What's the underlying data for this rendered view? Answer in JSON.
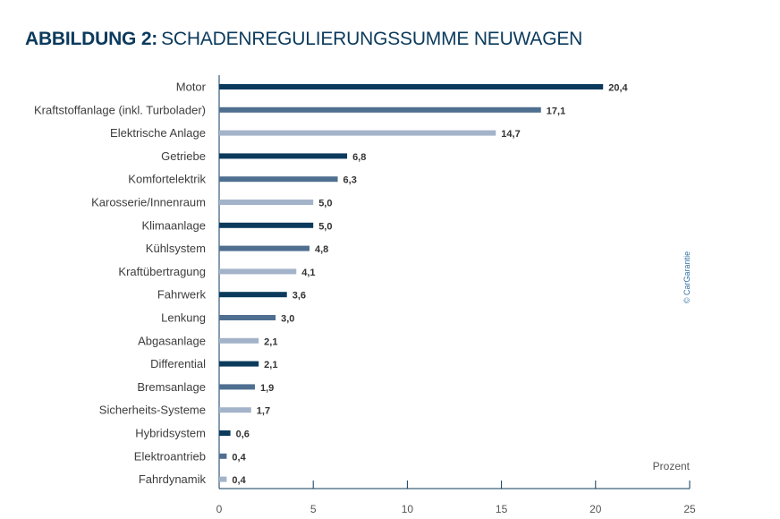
{
  "title_bold": "ABBILDUNG 2:",
  "title_rest": "SCHADENREGULIERUNGSSUMME NEUWAGEN",
  "credit": "© CarGarantie",
  "colors": [
    "#0b3a5c",
    "#4f6f91",
    "#a3b3c9"
  ],
  "chart_data": {
    "type": "bar",
    "orientation": "horizontal",
    "categories": [
      "Motor",
      "Kraftstoffanlage (inkl. Turbolader)",
      "Elektrische Anlage",
      "Getriebe",
      "Komfortelektrik",
      "Karosserie/Innenraum",
      "Klimaanlage",
      "Kühlsystem",
      "Kraftübertragung",
      "Fahrwerk",
      "Lenkung",
      "Abgasanlage",
      "Differential",
      "Bremsanlage",
      "Sicherheits-Systeme",
      "Hybridsystem",
      "Elektroantrieb",
      "Fahrdynamik"
    ],
    "values": [
      20.4,
      17.1,
      14.7,
      6.8,
      6.3,
      5.0,
      5.0,
      4.8,
      4.1,
      3.6,
      3.0,
      2.1,
      2.1,
      1.9,
      1.7,
      0.6,
      0.4,
      0.4
    ],
    "value_labels": [
      "20,4",
      "17,1",
      "14,7",
      "6,8",
      "6,3",
      "5,0",
      "5,0",
      "4,8",
      "4,1",
      "3,6",
      "3,0",
      "2,1",
      "2,1",
      "1,9",
      "1,7",
      "0,6",
      "0,4",
      "0,4"
    ],
    "xlim": [
      0,
      25
    ],
    "xticks": [
      0,
      5,
      10,
      15,
      20,
      25
    ],
    "xtick_labels": [
      "0",
      "5",
      "10",
      "15",
      "20",
      "25"
    ],
    "xlabel": "Prozent",
    "ylabel": "",
    "grid": false,
    "legend": false
  }
}
